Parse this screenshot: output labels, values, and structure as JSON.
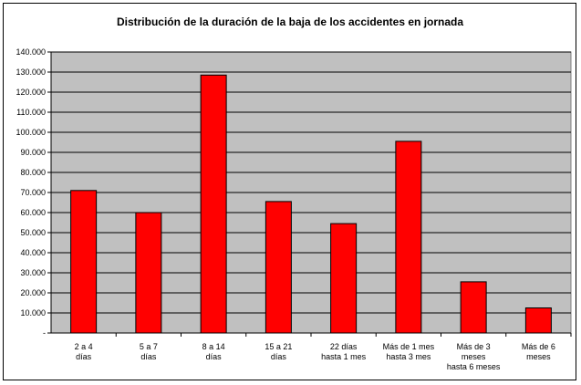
{
  "chart_data": {
    "type": "bar",
    "title": "Distribución de la duración de la baja de los accidentes en jornada",
    "categories": [
      [
        "2 a 4",
        "días"
      ],
      [
        "5 a 7",
        "días"
      ],
      [
        "8 a 14",
        "días"
      ],
      [
        "15 a 21",
        "días"
      ],
      [
        "22 días",
        "hasta 1 mes"
      ],
      [
        "Más de 1 mes",
        "hasta 3 mes"
      ],
      [
        "Más de 3",
        "meses",
        "hasta 6 meses"
      ],
      [
        "Más de 6",
        "meses"
      ]
    ],
    "values": [
      71000,
      60000,
      128500,
      65500,
      54500,
      95500,
      25500,
      12500
    ],
    "ylim": [
      0,
      140000
    ],
    "yticks": [
      "-",
      "10.000",
      "20.000",
      "30.000",
      "40.000",
      "50.000",
      "60.000",
      "70.000",
      "80.000",
      "90.000",
      "100.000",
      "110.000",
      "120.000",
      "130.000",
      "140.000"
    ],
    "grid": true,
    "colors": {
      "bar": "#ff0000",
      "plot_bg": "#c0c0c0",
      "grid": "#000000"
    }
  }
}
